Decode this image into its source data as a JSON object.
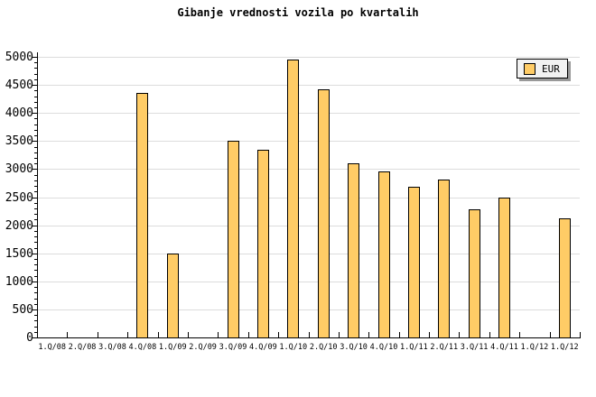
{
  "title": "Gibanje vrednosti vozila po kvartalih",
  "legend": {
    "label": "EUR"
  },
  "colors": {
    "background": "#FFFFFF",
    "bar_fill": "#FFCC66",
    "bar_border": "#000000",
    "grid": "#DCDCDC",
    "axis": "#000000",
    "text": "#000000",
    "legend_bg": "#F2F2F2",
    "legend_shadow": "#999999"
  },
  "chart_data": {
    "type": "bar",
    "title": "Gibanje vrednosti vozila po kvartalih",
    "categories": [
      "1.Q/08",
      "2.Q/08",
      "3.Q/08",
      "4.Q/08",
      "1.Q/09",
      "2.Q/09",
      "3.Q/09",
      "4.Q/09",
      "1.Q/10",
      "2.Q/10",
      "3.Q/10",
      "4.Q/10",
      "1.Q/11",
      "2.Q/11",
      "3.Q/11",
      "4.Q/11",
      "1.Q/12",
      "1.Q/12"
    ],
    "series": [
      {
        "name": "EUR",
        "values": [
          null,
          null,
          null,
          4350,
          1500,
          null,
          3500,
          3350,
          4950,
          4430,
          3100,
          2960,
          2690,
          2820,
          2290,
          2500,
          null,
          2120
        ]
      }
    ],
    "ylim": [
      0,
      5000
    ],
    "yticks": [
      0,
      500,
      1000,
      1500,
      2000,
      2500,
      3000,
      3500,
      4000,
      4500,
      5000
    ],
    "ytick_interval": 500,
    "y_minor_tick_interval": 100,
    "xlabel": "",
    "ylabel": "",
    "grid": "horizontal-major",
    "legend_position": "top-right"
  }
}
